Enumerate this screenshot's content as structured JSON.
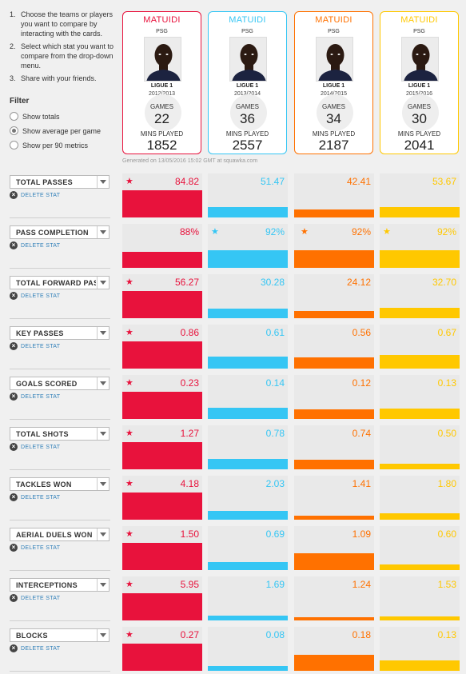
{
  "instructions": [
    {
      "num": "1.",
      "text": "Choose the teams or players you want to compare by interacting with the cards."
    },
    {
      "num": "2.",
      "text": "Select which stat you want to compare from the drop-down menu."
    },
    {
      "num": "3.",
      "text": "Share with your friends."
    }
  ],
  "filter": {
    "title": "Filter",
    "options": [
      {
        "label": "Show totals",
        "checked": false
      },
      {
        "label": "Show average per game",
        "checked": true
      },
      {
        "label": "Show per 90 metrics",
        "checked": false
      }
    ]
  },
  "delete_label": "DELETE STAT",
  "generated": "Generated on 13/05/2016 15:02 GMT at squawka.com",
  "cards": [
    {
      "name": "MATUIDI",
      "team": "PSG",
      "league": "LIGUE 1",
      "season": "2012/2013",
      "games_label": "GAMES",
      "games": "22",
      "mins_label": "MINS PLAYED",
      "mins": "1852",
      "color": "#e8123c"
    },
    {
      "name": "MATUIDI",
      "team": "PSG",
      "league": "LIGUE 1",
      "season": "2013/2014",
      "games_label": "GAMES",
      "games": "36",
      "mins_label": "MINS PLAYED",
      "mins": "2557",
      "color": "#35c6f4"
    },
    {
      "name": "MATUIDI",
      "team": "PSG",
      "league": "LIGUE 1",
      "season": "2014/2015",
      "games_label": "GAMES",
      "games": "34",
      "mins_label": "MINS PLAYED",
      "mins": "2187",
      "color": "#ff7100"
    },
    {
      "name": "MATUIDI",
      "team": "PSG",
      "league": "LIGUE 1",
      "season": "2015/2016",
      "games_label": "GAMES",
      "games": "30",
      "mins_label": "MINS PLAYED",
      "mins": "2041",
      "color": "#ffc800"
    }
  ],
  "stats": [
    {
      "name": "TOTAL PASSES",
      "values": [
        "84.82",
        "51.47",
        "42.41",
        "53.67"
      ],
      "fill": [
        1.0,
        0.37,
        0.29,
        0.39
      ],
      "stars": [
        0
      ]
    },
    {
      "name": "PASS COMPLETION",
      "values": [
        "88%",
        "92%",
        "92%",
        "92%"
      ],
      "fill": [
        0.6,
        0.64,
        0.64,
        0.64
      ],
      "stars": [
        1,
        2,
        3
      ]
    },
    {
      "name": "TOTAL FORWARD PASSES",
      "values": [
        "56.27",
        "30.28",
        "24.12",
        "32.70"
      ],
      "fill": [
        1.0,
        0.35,
        0.25,
        0.37
      ],
      "stars": [
        0
      ]
    },
    {
      "name": "KEY PASSES",
      "values": [
        "0.86",
        "0.61",
        "0.56",
        "0.67"
      ],
      "fill": [
        1.0,
        0.45,
        0.4,
        0.5
      ],
      "stars": [
        0
      ]
    },
    {
      "name": "GOALS SCORED",
      "values": [
        "0.23",
        "0.14",
        "0.12",
        "0.13"
      ],
      "fill": [
        1.0,
        0.4,
        0.36,
        0.38
      ],
      "stars": [
        0
      ]
    },
    {
      "name": "TOTAL SHOTS",
      "values": [
        "1.27",
        "0.78",
        "0.74",
        "0.50"
      ],
      "fill": [
        1.0,
        0.38,
        0.36,
        0.2
      ],
      "stars": [
        0
      ]
    },
    {
      "name": "TACKLES WON",
      "values": [
        "4.18",
        "2.03",
        "1.41",
        "1.80"
      ],
      "fill": [
        1.0,
        0.31,
        0.15,
        0.24
      ],
      "stars": [
        0
      ]
    },
    {
      "name": "AERIAL DUELS WON",
      "values": [
        "1.50",
        "0.69",
        "1.09",
        "0.60"
      ],
      "fill": [
        1.0,
        0.29,
        0.62,
        0.2
      ],
      "stars": [
        0
      ]
    },
    {
      "name": "INTERCEPTIONS",
      "values": [
        "5.95",
        "1.69",
        "1.24",
        "1.53"
      ],
      "fill": [
        1.0,
        0.18,
        0.13,
        0.16
      ],
      "stars": [
        0
      ]
    },
    {
      "name": "BLOCKS",
      "values": [
        "0.27",
        "0.08",
        "0.18",
        "0.13"
      ],
      "fill": [
        1.0,
        0.18,
        0.6,
        0.38
      ],
      "stars": [
        0
      ]
    }
  ],
  "icons": {
    "star": "star-icon",
    "delete": "close-circle-icon",
    "dropdown": "chevron-down-icon"
  }
}
